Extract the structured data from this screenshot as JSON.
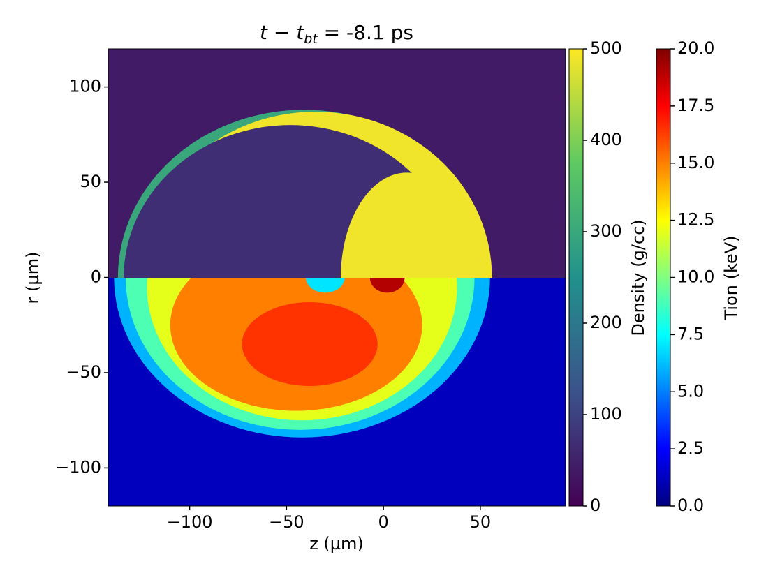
{
  "chart_data": {
    "type": "heatmap",
    "title": {
      "main": "t − t",
      "subscript": "bt",
      "rest": " = -8.1 ps"
    },
    "xlabel": "z (µm)",
    "ylabel": "r (µm)",
    "xlim": [
      -142,
      94
    ],
    "ylim": [
      -120,
      120
    ],
    "xticks": [
      {
        "value": -100,
        "label": "−100"
      },
      {
        "value": -50,
        "label": "−50"
      },
      0,
      50
    ],
    "yticks": [
      {
        "value": -100,
        "label": "−100"
      },
      {
        "value": -50,
        "label": "−50"
      },
      0,
      50,
      100
    ],
    "colorbars": [
      {
        "label": "Density (g/cc)",
        "colormap": "viridis",
        "half": "upper",
        "lim": [
          0,
          500
        ],
        "ticks": [
          0,
          100,
          200,
          300,
          400,
          500
        ],
        "regions": [
          {
            "shape": "rect",
            "value": 40
          },
          {
            "shape": "ellipse",
            "cx": -41,
            "cy": 0,
            "rx": 96,
            "ry": 88,
            "value": 300
          },
          {
            "shape": "ellipse",
            "cx": -35,
            "cy": 0,
            "rx": 91,
            "ry": 87,
            "value": 490
          },
          {
            "shape": "ellipse",
            "cx": -48,
            "cy": 0,
            "rx": 86,
            "ry": 80,
            "value": 70
          },
          {
            "shape": "ellipse",
            "cx": 12,
            "cy": 0,
            "rx": 34,
            "ry": 55,
            "value": 490
          }
        ]
      },
      {
        "label": "Tion (keV)",
        "colormap": "jet",
        "half": "lower",
        "lim": [
          0,
          20
        ],
        "ticks": [
          {
            "value": 0,
            "label": "0.0"
          },
          {
            "value": 2.5,
            "label": "2.5"
          },
          {
            "value": 5,
            "label": "5.0"
          },
          {
            "value": 7.5,
            "label": "7.5"
          },
          {
            "value": 10,
            "label": "10.0"
          },
          {
            "value": 12.5,
            "label": "12.5"
          },
          {
            "value": 15,
            "label": "15.0"
          },
          {
            "value": 17.5,
            "label": "17.5"
          },
          {
            "value": 20,
            "label": "20.0"
          }
        ],
        "regions": [
          {
            "shape": "rect",
            "value": 1.2
          },
          {
            "shape": "ellipse",
            "cx": -42,
            "cy": 0,
            "rx": 97,
            "ry": 84,
            "value": 6
          },
          {
            "shape": "ellipse",
            "cx": -43,
            "cy": 0,
            "rx": 90,
            "ry": 80,
            "value": 9
          },
          {
            "shape": "ellipse",
            "cx": -42,
            "cy": -5,
            "rx": 80,
            "ry": 70,
            "value": 12
          },
          {
            "shape": "ellipse",
            "cx": -45,
            "cy": -25,
            "rx": 65,
            "ry": 45,
            "value": 15
          },
          {
            "shape": "ellipse",
            "cx": -38,
            "cy": -35,
            "rx": 35,
            "ry": 22,
            "value": 16.5
          },
          {
            "shape": "ellipse",
            "cx": -30,
            "cy": 0,
            "rx": 10,
            "ry": 8,
            "value": 7
          },
          {
            "shape": "ellipse",
            "cx": 2,
            "cy": 0,
            "rx": 9,
            "ry": 8,
            "value": 19
          }
        ]
      }
    ]
  }
}
